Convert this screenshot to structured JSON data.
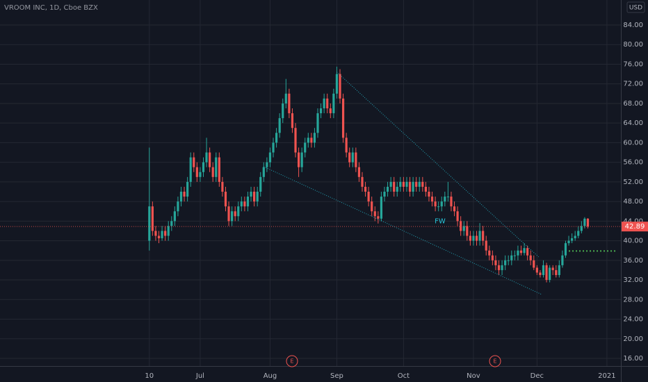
{
  "chart_data": {
    "type": "candlestick",
    "title": "VROOM INC, 1D, Cboe BZX",
    "currency": "USD",
    "up_color": "#26a69a",
    "down_color": "#ef5350",
    "grid": true,
    "xlim": [
      -47,
      148.4
    ],
    "ylim": [
      14.44,
      89.1
    ],
    "xticks": [
      {
        "value": 0,
        "label": "10"
      },
      {
        "value": 16,
        "label": "Jul"
      },
      {
        "value": 38,
        "label": "Aug"
      },
      {
        "value": 59,
        "label": "Sep"
      },
      {
        "value": 80,
        "label": "Oct"
      },
      {
        "value": 102,
        "label": "Nov"
      },
      {
        "value": 122,
        "label": "Dec"
      },
      {
        "value": 144,
        "label": "2021"
      }
    ],
    "yticks": [
      {
        "value": 16,
        "label": "16.00"
      },
      {
        "value": 20,
        "label": "20.00"
      },
      {
        "value": 24,
        "label": "24.00"
      },
      {
        "value": 28,
        "label": "28.00"
      },
      {
        "value": 32,
        "label": "32.00"
      },
      {
        "value": 36,
        "label": "36.00"
      },
      {
        "value": 40,
        "label": "40.00"
      },
      {
        "value": 44,
        "label": "44.00"
      },
      {
        "value": 48,
        "label": "48.00"
      },
      {
        "value": 52,
        "label": "52.00"
      },
      {
        "value": 56,
        "label": "56.00"
      },
      {
        "value": 60,
        "label": "60.00"
      },
      {
        "value": 64,
        "label": "64.00"
      },
      {
        "value": 68,
        "label": "68.00"
      },
      {
        "value": 72,
        "label": "72.00"
      },
      {
        "value": 76,
        "label": "76.00"
      },
      {
        "value": 80,
        "label": "80.00"
      },
      {
        "value": 84,
        "label": "84.00"
      }
    ],
    "ohlc": [
      [
        40,
        59,
        38,
        47
      ],
      [
        47,
        48,
        41,
        42
      ],
      [
        42,
        43,
        40,
        41
      ],
      [
        41,
        42,
        39.5,
        40.5
      ],
      [
        40.5,
        43,
        40,
        42
      ],
      [
        42,
        43,
        40,
        41
      ],
      [
        41,
        44,
        40,
        43
      ],
      [
        43,
        45,
        42,
        44
      ],
      [
        44,
        47,
        43,
        46
      ],
      [
        46,
        49,
        45,
        48
      ],
      [
        48,
        51,
        47,
        50
      ],
      [
        50,
        51,
        48,
        49
      ],
      [
        49,
        53,
        48,
        52
      ],
      [
        52,
        58,
        51,
        57
      ],
      [
        57,
        58,
        54,
        55
      ],
      [
        55,
        56,
        52,
        53
      ],
      [
        53,
        55,
        52,
        54
      ],
      [
        54,
        57,
        53,
        56
      ],
      [
        56,
        61,
        55,
        58
      ],
      [
        58,
        59,
        54,
        55
      ],
      [
        55,
        56,
        52,
        53
      ],
      [
        53,
        58,
        52,
        57
      ],
      [
        57,
        58,
        51,
        52
      ],
      [
        52,
        53,
        49,
        50
      ],
      [
        50,
        51,
        46,
        47
      ],
      [
        47,
        48,
        43,
        44
      ],
      [
        44,
        47,
        43,
        46
      ],
      [
        46,
        47,
        44,
        45
      ],
      [
        45,
        48,
        44,
        47
      ],
      [
        47,
        49,
        46,
        48
      ],
      [
        48,
        49,
        46,
        47
      ],
      [
        47,
        50,
        46,
        49
      ],
      [
        49,
        51,
        48,
        50
      ],
      [
        50,
        51,
        47,
        48
      ],
      [
        48,
        51,
        47,
        50
      ],
      [
        50,
        54,
        49,
        53
      ],
      [
        53,
        56,
        52,
        55
      ],
      [
        55,
        57,
        54,
        56
      ],
      [
        56,
        59,
        55,
        58
      ],
      [
        58,
        61,
        57,
        60
      ],
      [
        60,
        63,
        59,
        62
      ],
      [
        62,
        66,
        61,
        65
      ],
      [
        65,
        69,
        64,
        68
      ],
      [
        68,
        73,
        67,
        70
      ],
      [
        70,
        71,
        65,
        66
      ],
      [
        66,
        67,
        62,
        63
      ],
      [
        63,
        64,
        57,
        58
      ],
      [
        58,
        59,
        53,
        55
      ],
      [
        55,
        59,
        54,
        58
      ],
      [
        58,
        61,
        57,
        60
      ],
      [
        60,
        62,
        59,
        61
      ],
      [
        61,
        62,
        59,
        60
      ],
      [
        60,
        63,
        59,
        62
      ],
      [
        62,
        67,
        61,
        66
      ],
      [
        66,
        68,
        65,
        67
      ],
      [
        67,
        70,
        66,
        69
      ],
      [
        69,
        70,
        66,
        67
      ],
      [
        67,
        68,
        65,
        66
      ],
      [
        66,
        71,
        65,
        70
      ],
      [
        70,
        75.5,
        69,
        74
      ],
      [
        74,
        75,
        68,
        69
      ],
      [
        69,
        70,
        60,
        61
      ],
      [
        61,
        62,
        57,
        58
      ],
      [
        58,
        59,
        55,
        56
      ],
      [
        56,
        59,
        55,
        58
      ],
      [
        58,
        59,
        54,
        55
      ],
      [
        55,
        56,
        52,
        53
      ],
      [
        53,
        54,
        50,
        51
      ],
      [
        51,
        52,
        49,
        50
      ],
      [
        50,
        51,
        47,
        48
      ],
      [
        48,
        49,
        45,
        46
      ],
      [
        46,
        47,
        44,
        45
      ],
      [
        45,
        46,
        43.5,
        44.5
      ],
      [
        44.5,
        50,
        44,
        49
      ],
      [
        49,
        51,
        48,
        50
      ],
      [
        50,
        52,
        49,
        51
      ],
      [
        51,
        53,
        50,
        52
      ],
      [
        52,
        53,
        49,
        50
      ],
      [
        50,
        52,
        49,
        51
      ],
      [
        51,
        53,
        50,
        52
      ],
      [
        52,
        53,
        50,
        51
      ],
      [
        51,
        53,
        50,
        52
      ],
      [
        52,
        53,
        49,
        50
      ],
      [
        50,
        53,
        49,
        52
      ],
      [
        52,
        53,
        50,
        51
      ],
      [
        51,
        53,
        50,
        52
      ],
      [
        52,
        53,
        50,
        51
      ],
      [
        51,
        52,
        49,
        50
      ],
      [
        50,
        51,
        48,
        49
      ],
      [
        49,
        50,
        47,
        48
      ],
      [
        48,
        49,
        46,
        47
      ],
      [
        47,
        48,
        46,
        47
      ],
      [
        47,
        49,
        46,
        48
      ],
      [
        48,
        50,
        47,
        49
      ],
      [
        49,
        52,
        48,
        49
      ],
      [
        49,
        50,
        46,
        47
      ],
      [
        47,
        48,
        45,
        46
      ],
      [
        46,
        47,
        43,
        44
      ],
      [
        44,
        45,
        41,
        42
      ],
      [
        42,
        44,
        41,
        43
      ],
      [
        43,
        44,
        40,
        41
      ],
      [
        41,
        42,
        39,
        40
      ],
      [
        40,
        42,
        39,
        41
      ],
      [
        41,
        42,
        39,
        40
      ],
      [
        40,
        43.6,
        39,
        42
      ],
      [
        42,
        43,
        39,
        40
      ],
      [
        40,
        41,
        37,
        38
      ],
      [
        38,
        39,
        36,
        37
      ],
      [
        37,
        38,
        35,
        36
      ],
      [
        36,
        37,
        34,
        35
      ],
      [
        35,
        36,
        33,
        34
      ],
      [
        34,
        36,
        33,
        35
      ],
      [
        35,
        37,
        34,
        36
      ],
      [
        36,
        37,
        35,
        36
      ],
      [
        36,
        38,
        35,
        37
      ],
      [
        37,
        38,
        36,
        37
      ],
      [
        37,
        39,
        36,
        38
      ],
      [
        38,
        39,
        37,
        37.5
      ],
      [
        37.5,
        39.5,
        37,
        38.5
      ],
      [
        38.5,
        39,
        36,
        37
      ],
      [
        37,
        38,
        35,
        36
      ],
      [
        36,
        37,
        34,
        34.5
      ],
      [
        34.5,
        35,
        33,
        33.5
      ],
      [
        33.5,
        34,
        32.5,
        33
      ],
      [
        33,
        36,
        32.5,
        35
      ],
      [
        35,
        35.5,
        31.5,
        32
      ],
      [
        32,
        35,
        31.5,
        34.5
      ],
      [
        34.5,
        35,
        33,
        34
      ],
      [
        34,
        35,
        32.5,
        33
      ],
      [
        33,
        36,
        32.5,
        35
      ],
      [
        35,
        38,
        34.5,
        37
      ],
      [
        37,
        40,
        36.5,
        39.5
      ],
      [
        39.5,
        41,
        39,
        40
      ],
      [
        40,
        41.5,
        39.5,
        40.5
      ],
      [
        40.5,
        42,
        40,
        41
      ],
      [
        41,
        43,
        40.5,
        42
      ],
      [
        42,
        44,
        41.5,
        43
      ],
      [
        43,
        44.8,
        42.5,
        44.5
      ],
      [
        44.5,
        44.6,
        42.5,
        42.89
      ]
    ],
    "trendlines": [
      {
        "x": [
          59,
          122.5
        ],
        "y": [
          74.4,
          36.7
        ],
        "color": "#26c6da"
      },
      {
        "x": [
          36,
          123.6
        ],
        "y": [
          55.1,
          29.0
        ],
        "color": "#26c6da"
      }
    ],
    "level_line": {
      "x": [
        132,
        147
      ],
      "y": 37.9,
      "color": "#4caf50"
    },
    "annotations": [
      {
        "x": 91.5,
        "y": 44.0,
        "text": "FW"
      }
    ],
    "earnings": [
      {
        "x": 44.9,
        "label": "E"
      },
      {
        "x": 108.8,
        "label": "E"
      }
    ]
  }
}
